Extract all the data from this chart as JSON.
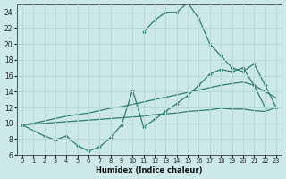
{
  "xlabel": "Humidex (Indice chaleur)",
  "bg_color": "#cce8e8",
  "line_color": "#2e7d6e",
  "grid_color": "#b8d8d8",
  "xlim": [
    -0.5,
    23.5
  ],
  "ylim": [
    6,
    25
  ],
  "xticks": [
    0,
    1,
    2,
    3,
    4,
    5,
    6,
    7,
    8,
    9,
    10,
    11,
    12,
    13,
    14,
    15,
    16,
    17,
    18,
    19,
    20,
    21,
    22,
    23
  ],
  "yticks": [
    6,
    8,
    10,
    12,
    14,
    16,
    18,
    20,
    22,
    24
  ],
  "line_peak_x": [
    11,
    12,
    13,
    14,
    15,
    16,
    17,
    18,
    19,
    20,
    21,
    22,
    23
  ],
  "line_peak_y": [
    21.5,
    23.0,
    24.0,
    24.0,
    25.2,
    23.2,
    20.0,
    18.5,
    17.0,
    16.5,
    17.5,
    14.8,
    12.0
  ],
  "line_volatile_x": [
    0,
    2,
    3,
    4,
    5,
    6,
    7,
    8,
    9,
    10,
    11,
    12,
    13,
    14,
    15,
    16,
    17,
    18,
    19,
    20,
    21,
    22,
    23
  ],
  "line_volatile_y": [
    9.8,
    8.4,
    7.9,
    8.4,
    7.2,
    6.5,
    7.0,
    8.2,
    9.8,
    14.2,
    9.5,
    10.5,
    11.5,
    12.5,
    13.5,
    14.8,
    16.2,
    16.8,
    16.5,
    17.0,
    14.8,
    12.0,
    12.0
  ],
  "line_upper_x": [
    0,
    1,
    2,
    3,
    4,
    5,
    6,
    7,
    8,
    9,
    10,
    11,
    12,
    13,
    14,
    15,
    16,
    17,
    18,
    19,
    20,
    21,
    22,
    23
  ],
  "line_upper_y": [
    9.8,
    10.0,
    10.3,
    10.6,
    10.9,
    11.1,
    11.3,
    11.6,
    11.9,
    12.1,
    12.4,
    12.7,
    13.0,
    13.3,
    13.6,
    13.9,
    14.2,
    14.5,
    14.8,
    15.0,
    15.2,
    14.8,
    14.0,
    13.2
  ],
  "line_lower_x": [
    0,
    1,
    2,
    3,
    4,
    5,
    6,
    7,
    8,
    9,
    10,
    11,
    12,
    13,
    14,
    15,
    16,
    17,
    18,
    19,
    20,
    21,
    22,
    23
  ],
  "line_lower_y": [
    9.8,
    9.9,
    10.0,
    10.1,
    10.2,
    10.3,
    10.4,
    10.5,
    10.6,
    10.7,
    10.8,
    10.9,
    11.1,
    11.2,
    11.3,
    11.5,
    11.6,
    11.7,
    11.9,
    11.8,
    11.8,
    11.6,
    11.5,
    12.0
  ]
}
